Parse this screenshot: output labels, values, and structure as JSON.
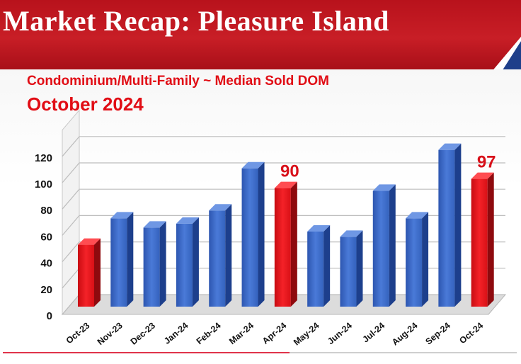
{
  "header": {
    "title": "Market Recap: Pleasure Island"
  },
  "colors": {
    "banner": "#c41a22",
    "bar_blue": "#3a66c4",
    "bar_red": "#e8141c",
    "accent_text": "#e10d15"
  },
  "chart_data": {
    "type": "bar",
    "title": "Condominium/Multi-Family ~ Median Sold DOM",
    "subtitle": "October 2024",
    "categories": [
      "Oct-23",
      "Nov-23",
      "Dec-23",
      "Jan-24",
      "Feb-24",
      "Mar-24",
      "Apr-24",
      "May-24",
      "Jun-24",
      "Jul-24",
      "Aug-24",
      "Sep-24",
      "Oct-24"
    ],
    "values": [
      47,
      67,
      60,
      63,
      73,
      105,
      90,
      57,
      53,
      88,
      67,
      119,
      97
    ],
    "highlight": [
      true,
      false,
      false,
      false,
      false,
      false,
      true,
      false,
      false,
      false,
      false,
      false,
      true
    ],
    "data_labels": [
      {
        "category": "Apr-24",
        "text": "90"
      },
      {
        "category": "Oct-24",
        "text": "97"
      }
    ],
    "yticks": [
      "0",
      "20",
      "40",
      "60",
      "80",
      "100",
      "120"
    ],
    "ylim": [
      0,
      140
    ],
    "grid": true,
    "legend": "none",
    "style": "3d"
  }
}
